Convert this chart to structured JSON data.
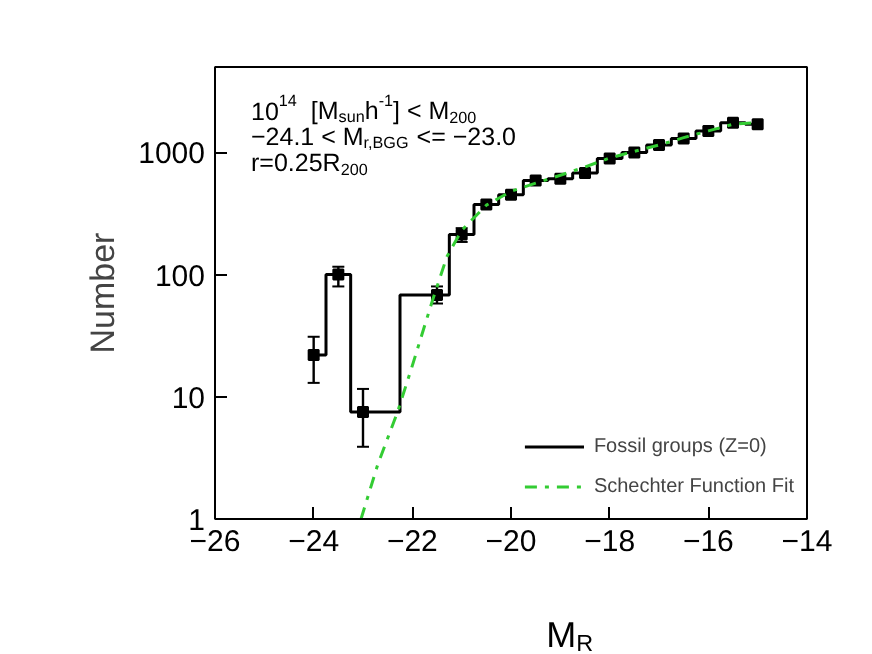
{
  "chart_data": {
    "type": "step",
    "xlabel": "M$_{R}$",
    "ylabel": "Number",
    "annotations": [
      "10$^{14}$  [M$_{sun}$h$^{-1}$] < M$_{200}$",
      "−24.1 < M$_{r,BGG}$ <= −23.0",
      "r=0.25R$_{200}$"
    ],
    "series": [
      {
        "name": "Fossil groups (Z=0)",
        "color": "#000000",
        "marker": "square",
        "x": [
          -24,
          -23.5,
          -23,
          -21.5,
          -21,
          -20.5,
          -20,
          -19.5,
          -19,
          -18.5,
          -18,
          -17.5,
          -17,
          -16.5,
          -16,
          -15.5,
          -15
        ],
        "values": [
          22,
          100,
          7.5,
          68,
          213,
          375,
          450,
          590,
          610,
          680,
          890,
          1000,
          1150,
          1300,
          1500,
          1750,
          1700
        ],
        "errors": [
          [
            13,
            31
          ],
          [
            80,
            116
          ],
          [
            3.9,
            11.6
          ],
          [
            58,
            80
          ],
          [
            185,
            240
          ],
          null,
          null,
          null,
          null,
          null,
          null,
          null,
          null,
          null,
          null,
          null,
          null
        ]
      },
      {
        "name": "Schechter Function Fit",
        "color": "#33cc33",
        "type": "line",
        "line_style": "dashdot",
        "x": [
          -23.04,
          -22.7,
          -22.3,
          -22.0,
          -21.6,
          -21.3,
          -21.0,
          -20.5,
          -20.0,
          -19.5,
          -19.0,
          -18.5,
          -18.0,
          -17.5,
          -17.0,
          -16.5,
          -16.0,
          -15.5,
          -15.0
        ],
        "values": [
          1,
          2.8,
          7.5,
          18,
          60,
          140,
          230,
          370,
          480,
          560,
          650,
          760,
          900,
          1020,
          1150,
          1320,
          1500,
          1700,
          1750
        ]
      }
    ],
    "xlim": [
      -26,
      -14
    ],
    "ylim": [
      1,
      5000
    ],
    "log": "y",
    "xticks": [
      -26,
      -24,
      -22,
      -20,
      -18,
      -16,
      -14
    ],
    "yticks": [
      1,
      10,
      100,
      1000
    ],
    "grid": false,
    "legend": "bottom right"
  }
}
